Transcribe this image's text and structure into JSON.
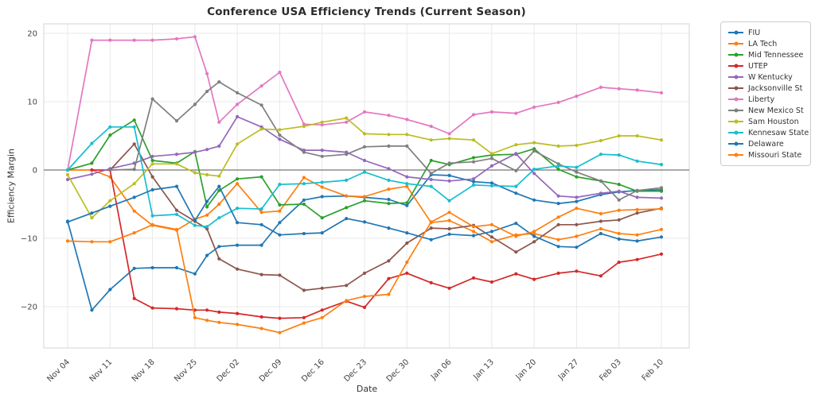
{
  "chart_data": {
    "type": "line",
    "title": "Conference USA Efficiency Trends (Current Season)",
    "xlabel": "Date",
    "ylabel": "Efficiency Margin",
    "ylim": [
      -26,
      21.4
    ],
    "grid": true,
    "zero_line": true,
    "legend_position": "outside-right",
    "colors": {
      "background": "#ffffff",
      "grid": "#e9e9e9",
      "plot_border": "#d4d4d4",
      "zero_line": "#555555",
      "tick_text": "#444444",
      "title_text": "#2b2b2b"
    },
    "x": {
      "dates": [
        "Nov 04",
        "Nov 08",
        "Nov 11",
        "Nov 15",
        "Nov 18",
        "Nov 22",
        "Nov 25",
        "Nov 27",
        "Nov 29",
        "Dec 02",
        "Dec 06",
        "Dec 09",
        "Dec 13",
        "Dec 16",
        "Dec 20",
        "Dec 23",
        "Dec 27",
        "Dec 30",
        "Jan 03",
        "Jan 06",
        "Jan 10",
        "Jan 13",
        "Jan 17",
        "Jan 20",
        "Jan 24",
        "Jan 27",
        "Jan 31",
        "Feb 03",
        "Feb 06",
        "Feb 10"
      ],
      "day_offsets": [
        0,
        4,
        7,
        11,
        14,
        18,
        21,
        23,
        25,
        28,
        32,
        35,
        39,
        42,
        46,
        49,
        53,
        56,
        60,
        63,
        67,
        70,
        74,
        77,
        81,
        84,
        88,
        91,
        94,
        98
      ],
      "tick_labels": [
        "Nov 04",
        "Nov 11",
        "Nov 18",
        "Nov 25",
        "Dec 02",
        "Dec 09",
        "Dec 16",
        "Dec 23",
        "Dec 30",
        "Jan 06",
        "Jan 13",
        "Jan 20",
        "Jan 27",
        "Feb 03",
        "Feb 10"
      ],
      "tick_days": [
        0,
        7,
        14,
        21,
        28,
        35,
        42,
        49,
        56,
        63,
        70,
        77,
        84,
        91,
        98
      ]
    },
    "y_ticks": {
      "values": [
        -20,
        -10,
        0,
        10,
        20
      ],
      "labels": [
        "−20",
        "−10",
        "0",
        "10",
        "20"
      ]
    },
    "series": [
      {
        "name": "FIU",
        "color": "#1f77b4",
        "values": [
          -7.5,
          -20.5,
          -17.5,
          -14.4,
          -14.3,
          -14.3,
          -15.2,
          -12.5,
          -11.2,
          -11.0,
          -11.0,
          -7.7,
          -4.4,
          -3.9,
          -3.8,
          -4.0,
          -4.3,
          -5.2,
          -0.7,
          -0.8,
          -1.7,
          -1.9,
          -3.4,
          -4.4,
          -4.9,
          -4.6,
          -3.6,
          -3.2,
          -3.0,
          -2.9
        ]
      },
      {
        "name": "LA Tech",
        "color": "#ff7f0e",
        "values": [
          0,
          0,
          -1.0,
          -6.0,
          -8.1,
          -8.8,
          -7.2,
          -6.6,
          -5.0,
          -2.0,
          -6.2,
          -6.0,
          -1.1,
          -2.5,
          -3.8,
          -3.9,
          -2.8,
          -2.4,
          -7.7,
          -7.4,
          -9.0,
          -10.5,
          -9.5,
          -9.3,
          -10.2,
          -9.7,
          -8.6,
          -9.3,
          -9.5,
          -8.7
        ]
      },
      {
        "name": "Mid Tennessee",
        "color": "#2ca02c",
        "values": [
          0,
          1.0,
          5.1,
          7.3,
          1.4,
          1.0,
          2.7,
          -5.4,
          -3.0,
          -1.3,
          -1.0,
          -5.1,
          -5.0,
          -7.0,
          -5.5,
          -4.5,
          -4.9,
          -4.8,
          1.4,
          0.8,
          1.8,
          2.2,
          2.3,
          3.1,
          0.1,
          -1.0,
          -1.6,
          -2.1,
          -3.1,
          -3.1
        ]
      },
      {
        "name": "UTEP",
        "color": "#d62728",
        "values": [
          null,
          0,
          0,
          -18.8,
          -20.2,
          -20.3,
          -20.5,
          -20.5,
          -20.8,
          -21.0,
          -21.5,
          -21.7,
          -21.6,
          -20.5,
          -19.2,
          -20.1,
          -15.9,
          -15.1,
          -16.5,
          -17.3,
          -15.8,
          -16.4,
          -15.2,
          -16.0,
          -15.1,
          -14.8,
          -15.5,
          -13.5,
          -13.1,
          -12.3
        ]
      },
      {
        "name": "W Kentucky",
        "color": "#9467bd",
        "values": [
          -1.4,
          -0.6,
          0.2,
          1.0,
          2.0,
          2.3,
          2.6,
          3.0,
          3.5,
          7.8,
          6.3,
          4.5,
          2.9,
          2.9,
          2.6,
          1.4,
          0.2,
          -1.0,
          -1.4,
          -1.6,
          -1.3,
          0.6,
          2.4,
          -0.5,
          -3.8,
          -4.0,
          -3.4,
          -3.1,
          -4.0,
          -4.1
        ]
      },
      {
        "name": "Jacksonville St",
        "color": "#8c564b",
        "values": [
          null,
          null,
          0,
          3.8,
          -1.0,
          -5.9,
          -7.5,
          -8.6,
          -13.0,
          -14.5,
          -15.3,
          -15.4,
          -17.6,
          -17.3,
          -16.9,
          -15.1,
          -13.3,
          -10.7,
          -8.5,
          -8.6,
          -8.1,
          -9.8,
          -12.0,
          -10.5,
          -8.0,
          -8.0,
          -7.5,
          -7.3,
          -6.3,
          -5.6
        ]
      },
      {
        "name": "Liberty",
        "color": "#e377c2",
        "values": [
          0,
          19.0,
          19.0,
          19.0,
          19.0,
          19.2,
          19.5,
          14.1,
          7.0,
          9.6,
          12.3,
          14.3,
          6.7,
          6.6,
          7.0,
          8.5,
          8.0,
          7.4,
          6.4,
          5.3,
          8.1,
          8.5,
          8.3,
          9.2,
          9.9,
          10.8,
          12.1,
          11.9,
          11.7,
          11.3
        ]
      },
      {
        "name": "New Mexico St",
        "color": "#7f7f7f",
        "values": [
          null,
          null,
          0,
          0.1,
          10.4,
          7.2,
          9.6,
          11.5,
          12.9,
          11.3,
          9.5,
          5.1,
          2.6,
          2.0,
          2.3,
          3.4,
          3.5,
          3.5,
          -0.5,
          1.0,
          1.2,
          1.7,
          -0.1,
          2.8,
          0.9,
          -0.3,
          -1.6,
          -4.4,
          -3.0,
          -2.6
        ]
      },
      {
        "name": "Sam Houston",
        "color": "#bcbd22",
        "values": [
          -0.7,
          -7.0,
          -4.5,
          -2.0,
          0.9,
          0.9,
          -0.4,
          -0.7,
          -0.9,
          3.8,
          6.0,
          5.9,
          6.4,
          7.0,
          7.6,
          5.3,
          5.2,
          5.2,
          4.4,
          4.6,
          4.4,
          2.4,
          3.7,
          4.0,
          3.5,
          3.6,
          4.3,
          5.0,
          5.0,
          4.4
        ]
      },
      {
        "name": "Kennesaw State",
        "color": "#17becf",
        "values": [
          0,
          3.9,
          6.3,
          6.3,
          -6.7,
          -6.5,
          -8.1,
          -8.3,
          -7.0,
          -5.6,
          -5.7,
          -2.1,
          -2.0,
          -1.8,
          -1.5,
          -0.3,
          -1.5,
          -2.0,
          -2.4,
          -4.5,
          -2.2,
          -2.3,
          -2.4,
          0.1,
          0.6,
          0.4,
          2.3,
          2.2,
          1.3,
          0.8
        ]
      },
      {
        "name": "Delaware",
        "color": "#1f77b4",
        "values": [
          -7.6,
          -6.3,
          -5.3,
          -4.0,
          -2.9,
          -2.4,
          -7.4,
          -4.6,
          -2.4,
          -7.7,
          -8.0,
          -9.5,
          -9.3,
          -9.2,
          -7.1,
          -7.6,
          -8.5,
          -9.2,
          -10.2,
          -9.4,
          -9.6,
          -9.0,
          -7.8,
          -9.7,
          -11.2,
          -11.3,
          -9.3,
          -10.1,
          -10.4,
          -9.8
        ]
      },
      {
        "name": "Missouri State",
        "color": "#ff7f0e",
        "values": [
          -10.4,
          -10.5,
          -10.5,
          -9.2,
          -8.0,
          -8.7,
          -21.6,
          -22.0,
          -22.3,
          -22.6,
          -23.2,
          -23.8,
          -22.4,
          -21.6,
          -19.1,
          -18.5,
          -18.2,
          -13.5,
          -7.6,
          -6.2,
          -8.3,
          -8.0,
          -9.7,
          -9.0,
          -6.9,
          -5.6,
          -6.4,
          -5.9,
          -5.8,
          -5.7
        ]
      }
    ]
  }
}
